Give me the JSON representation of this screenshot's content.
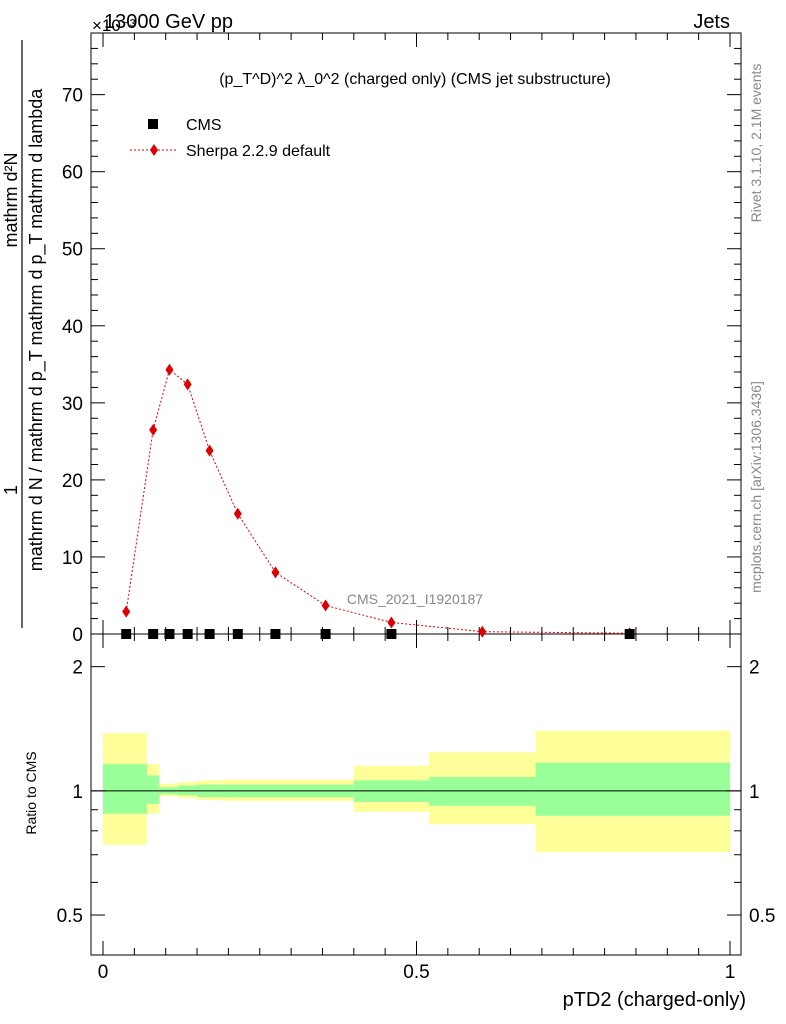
{
  "header": {
    "left": "13000 GeV pp",
    "right": "Jets",
    "multiplier": "×10⁻³"
  },
  "side_labels": {
    "rivet": "Rivet 3.1.10,  2.1M events",
    "mcplots": "mcplots.cern.ch [arXiv:1306.3436]"
  },
  "chart_data": {
    "type": "line",
    "title": "(p_T^D)^2 λ_0^2 (charged only) (CMS jet substructure)",
    "analysis_label": "CMS_2021_I1920187",
    "xlabel": "pTD2 (charged-only)",
    "ylabel_top": "1",
    "ylabel_bottom": "mathrm d N / mathrm d p_T mathrm d p_T mathrm d lambda",
    "ylabel_bottom_alt": "mathrm d²N",
    "ratio_ylabel": "Ratio to CMS",
    "xlim": [
      0,
      1
    ],
    "main_ylim": [
      0,
      78
    ],
    "main_yticks": [
      0,
      10,
      20,
      30,
      40,
      50,
      60,
      70
    ],
    "main_yscale": "×10⁻³",
    "ratio_ylim": [
      0.4,
      2.4
    ],
    "ratio_yticks_labels": [
      "0.5",
      "1",
      "2"
    ],
    "ratio_yticks": [
      0.5,
      1,
      2
    ],
    "xticks": [
      0,
      0.5,
      1
    ],
    "xticks_labels": [
      "0",
      "0.5",
      "1"
    ],
    "legend": [
      {
        "name": "CMS",
        "marker": "square",
        "color": "#000000"
      },
      {
        "name": "Sherpa 2.2.9 default",
        "marker": "diamond",
        "color": "#dd0000"
      }
    ],
    "legend_position": "top-left",
    "series": [
      {
        "name": "CMS",
        "x": [
          0.037,
          0.08,
          0.106,
          0.135,
          0.17,
          0.215,
          0.275,
          0.355,
          0.46,
          0.84
        ],
        "y": [
          0.0,
          0.0,
          0.0,
          0.0,
          0.0,
          0.0,
          0.0,
          0.0,
          0.0,
          0.0
        ]
      },
      {
        "name": "Sherpa 2.2.9 default",
        "x": [
          0.037,
          0.08,
          0.106,
          0.135,
          0.17,
          0.215,
          0.275,
          0.355,
          0.46,
          0.605,
          0.84
        ],
        "y": [
          2.9,
          26.5,
          34.3,
          32.4,
          23.8,
          15.6,
          8.0,
          3.7,
          1.5,
          0.3,
          0.1
        ]
      }
    ],
    "ratio_bands": {
      "edges": [
        0.0,
        0.07,
        0.09,
        0.12,
        0.15,
        0.19,
        0.24,
        0.4,
        0.52,
        0.69,
        1.0
      ],
      "inner_lo": [
        0.88,
        0.93,
        0.98,
        0.975,
        0.965,
        0.965,
        0.965,
        0.94,
        0.92,
        0.87
      ],
      "inner_hi": [
        1.16,
        1.09,
        1.02,
        1.03,
        1.035,
        1.035,
        1.035,
        1.06,
        1.08,
        1.17
      ],
      "outer_lo": [
        0.74,
        0.88,
        0.97,
        0.96,
        0.95,
        0.945,
        0.945,
        0.89,
        0.83,
        0.71
      ],
      "outer_hi": [
        1.38,
        1.16,
        1.04,
        1.05,
        1.06,
        1.065,
        1.065,
        1.15,
        1.24,
        1.4
      ]
    }
  }
}
